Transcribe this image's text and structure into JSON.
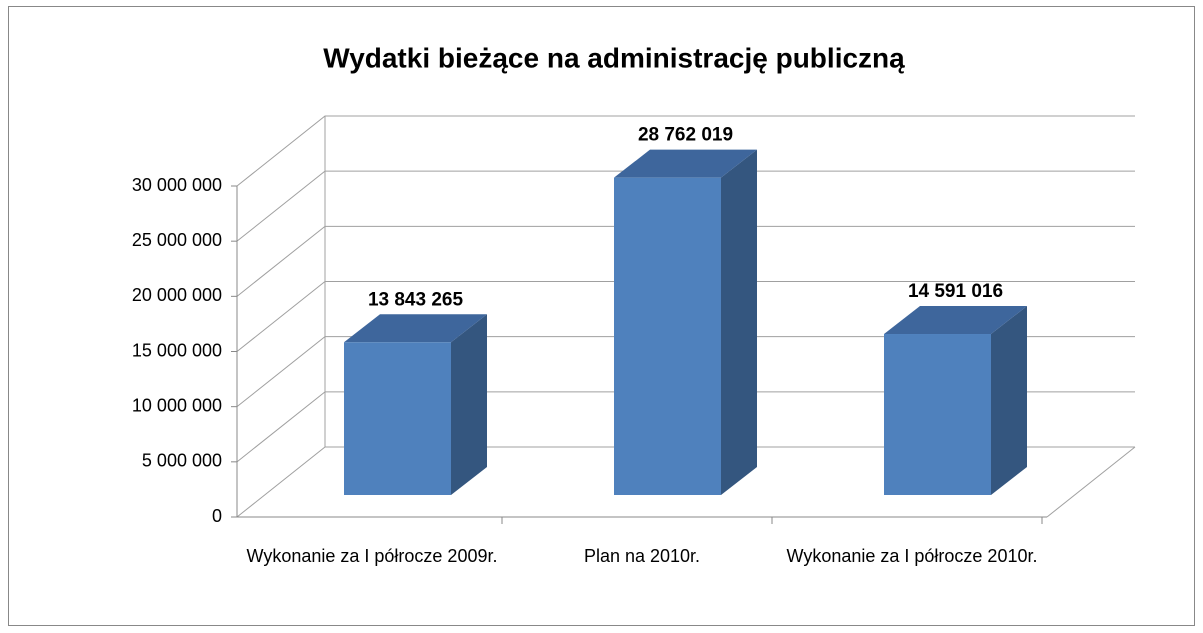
{
  "chart_data": {
    "type": "bar3d",
    "title": "Wydatki bieżące na administrację publiczną",
    "categories": [
      "Wykonanie za I półrocze 2009r.",
      "Plan na 2010r.",
      "Wykonanie za I półrocze 2010r."
    ],
    "values": [
      13843265,
      28762019,
      14591016
    ],
    "value_labels": [
      "13 843 265",
      "28 762 019",
      "14 591 016"
    ],
    "color": "#4f81bd",
    "ylim": [
      0,
      30000000
    ],
    "yticks": [
      0,
      {
        "value": 5000000,
        "label": "5 000 000"
      },
      {
        "value": 10000000,
        "label": "10 000 000"
      },
      {
        "value": 15000000,
        "label": "15 000 000"
      },
      {
        "value": 20000000,
        "label": "20 000 000"
      },
      {
        "value": 25000000,
        "label": "25 000 000"
      },
      {
        "value": 30000000,
        "label": "30 000 000"
      }
    ],
    "grid": true
  }
}
